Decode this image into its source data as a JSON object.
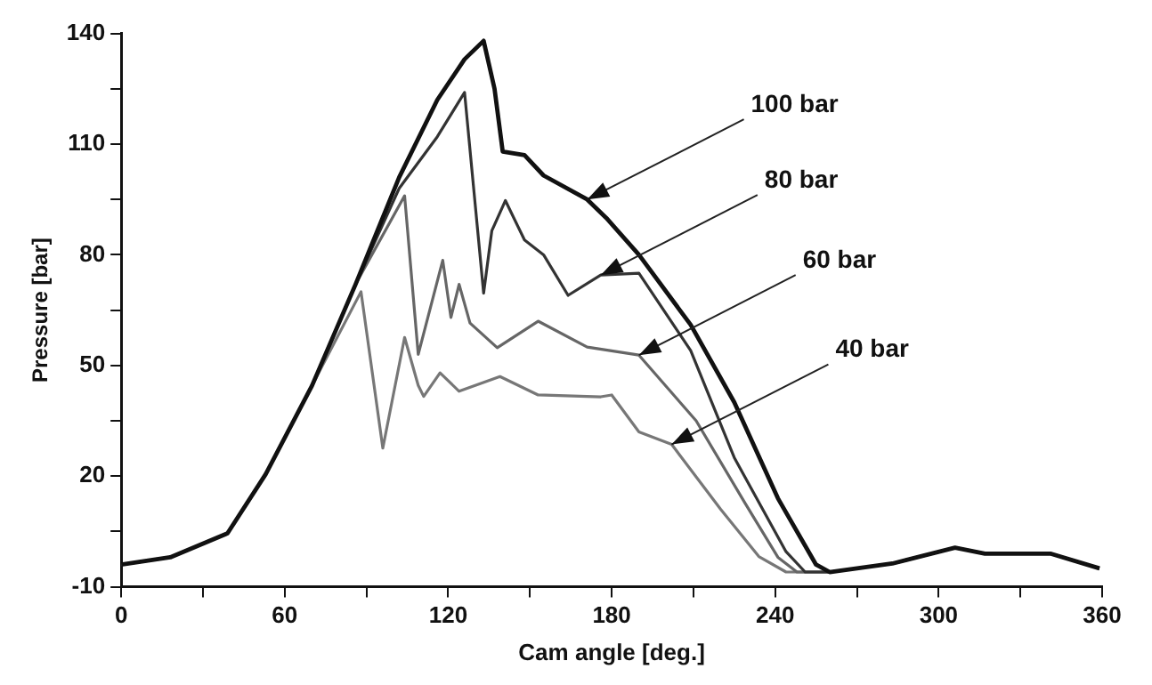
{
  "chart_data": {
    "type": "line",
    "xlabel": "Cam angle [deg.]",
    "ylabel": "Pressure [bar]",
    "xlim": [
      0,
      360
    ],
    "xticks": [
      0,
      {
        "value": 30,
        "label": null
      },
      60,
      {
        "value": 90,
        "label": null
      },
      120,
      {
        "value": 150,
        "label": null
      },
      180,
      {
        "value": 210,
        "label": null
      },
      240,
      {
        "value": 270,
        "label": null
      },
      300,
      {
        "value": 330,
        "label": null
      },
      360
    ],
    "ylim": [
      -10,
      140
    ],
    "yticks": [
      -10,
      {
        "value": 5,
        "label": null
      },
      20,
      {
        "value": 35,
        "label": null
      },
      50,
      {
        "value": 65,
        "label": null
      },
      80,
      {
        "value": 95,
        "label": null
      },
      110,
      {
        "value": 125,
        "label": null
      },
      140
    ],
    "grid": false,
    "legend": false,
    "marker": "none",
    "line_style": "solid",
    "series": [
      {
        "color": "#111111",
        "x": [
          0,
          18,
          39,
          53,
          70,
          86,
          102,
          116,
          126,
          133,
          137,
          140,
          148,
          155,
          171,
          178,
          190,
          209,
          225,
          241,
          255,
          260,
          283,
          306,
          317,
          341,
          359
        ],
        "values": [
          -4,
          -2,
          4.5,
          20.5,
          44.5,
          72,
          101,
          122,
          133,
          138,
          125,
          108,
          107,
          101.5,
          95,
          90,
          80,
          61,
          40,
          14,
          -4,
          -6,
          -3.7,
          0.6,
          -1,
          -1,
          -5
        ]
      },
      {
        "color": "#333333",
        "x": [
          0,
          18,
          39,
          53,
          70,
          86,
          102,
          116,
          126,
          133,
          136,
          141,
          148,
          155,
          164,
          176,
          190,
          209,
          225,
          244,
          251,
          260,
          283,
          306,
          317,
          341,
          359
        ],
        "values": [
          -4,
          -2,
          4.5,
          20.5,
          44.5,
          72,
          98,
          112,
          124,
          69.6,
          86.5,
          94.7,
          84,
          80,
          69,
          74.5,
          75,
          54,
          25,
          -0.5,
          -6,
          -6,
          -3.7,
          0.6,
          -1,
          -1,
          -5
        ]
      },
      {
        "color": "#666666",
        "x": [
          0,
          18,
          39,
          53,
          70,
          86,
          104,
          109,
          118,
          121,
          124,
          128,
          138,
          153,
          171,
          190,
          211,
          229,
          241,
          248,
          260,
          283,
          306,
          317,
          341,
          359
        ],
        "values": [
          -4,
          -2,
          4.5,
          20.5,
          44.5,
          72,
          96,
          53,
          78.5,
          63,
          72,
          61.5,
          54.8,
          62,
          55,
          52.8,
          35,
          12.6,
          -2,
          -6,
          -6,
          -3.7,
          0.6,
          -1,
          -1,
          -5
        ]
      },
      {
        "color": "#777777",
        "x": [
          0,
          18,
          39,
          53,
          70,
          88,
          96,
          104,
          109,
          111,
          117,
          124,
          139,
          153,
          176,
          180,
          190,
          202,
          220,
          234,
          244,
          260,
          283,
          306,
          317,
          341,
          359
        ],
        "values": [
          -4,
          -2,
          4.5,
          20.5,
          44.5,
          70,
          27.6,
          57.6,
          44.6,
          41.6,
          48,
          43,
          47,
          42,
          41.5,
          42,
          32,
          28.6,
          11,
          -1.8,
          -6,
          -6,
          -3.7,
          0.6,
          -1,
          -1,
          -5
        ]
      }
    ],
    "annotations": [
      {
        "text": "100 bar",
        "x": 171,
        "y": 95
      },
      {
        "text": "80 bar",
        "x": 176,
        "y": 74.5
      },
      {
        "text": "60 bar",
        "x": 190,
        "y": 52.8
      },
      {
        "text": "40 bar",
        "x": 202,
        "y": 28.6
      }
    ]
  }
}
